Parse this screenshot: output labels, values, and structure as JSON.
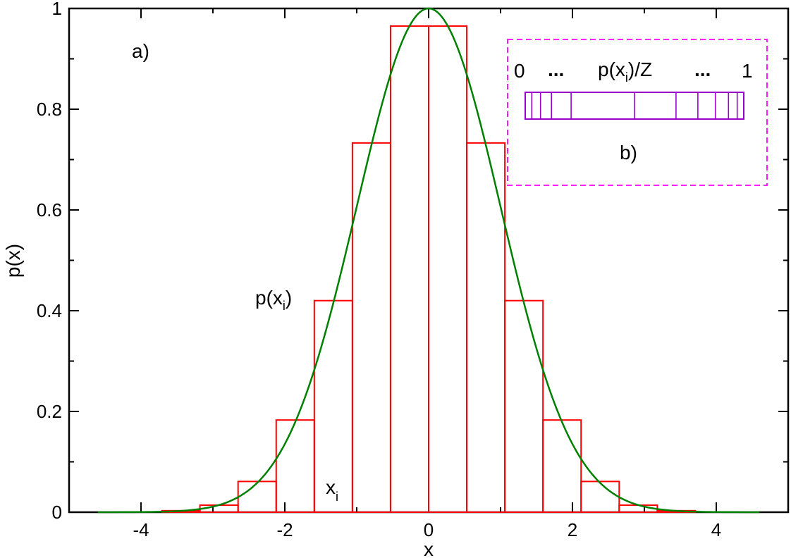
{
  "chart_data": {
    "type": "line",
    "xlabel": "x",
    "ylabel": "p(x)",
    "xlim": [
      -5,
      5
    ],
    "ylim": [
      0,
      1
    ],
    "x_ticks": [
      -4,
      -2,
      0,
      2,
      4
    ],
    "x_tick_labels": [
      "-4",
      "-2",
      "0",
      "2",
      "4"
    ],
    "y_ticks": [
      0,
      0.2,
      0.4,
      0.6,
      0.8,
      1
    ],
    "y_tick_labels": [
      "0",
      "0.2",
      "0.4",
      "0.6",
      "0.8",
      "1"
    ],
    "grid": false,
    "curve": {
      "function": "exp(-x^2/2)",
      "x_range": [
        -4.6,
        4.6
      ],
      "color": "#008000"
    },
    "histogram": {
      "color": "#ff0000",
      "bin_width": 0.53,
      "bins": [
        {
          "x_left": -3.71,
          "x_right": -3.18,
          "value": 0.003
        },
        {
          "x_left": -3.18,
          "x_right": -2.65,
          "value": 0.014
        },
        {
          "x_left": -2.65,
          "x_right": -2.12,
          "value": 0.061
        },
        {
          "x_left": -2.12,
          "x_right": -1.59,
          "value": 0.183
        },
        {
          "x_left": -1.59,
          "x_right": -1.06,
          "value": 0.42
        },
        {
          "x_left": -1.06,
          "x_right": -0.53,
          "value": 0.733
        },
        {
          "x_left": -0.53,
          "x_right": 0.0,
          "value": 0.965
        },
        {
          "x_left": 0.0,
          "x_right": 0.53,
          "value": 0.965
        },
        {
          "x_left": 0.53,
          "x_right": 1.06,
          "value": 0.733
        },
        {
          "x_left": 1.06,
          "x_right": 1.59,
          "value": 0.42
        },
        {
          "x_left": 1.59,
          "x_right": 2.12,
          "value": 0.183
        },
        {
          "x_left": 2.12,
          "x_right": 2.65,
          "value": 0.061
        },
        {
          "x_left": 2.65,
          "x_right": 3.18,
          "value": 0.014
        },
        {
          "x_left": 3.18,
          "x_right": 3.71,
          "value": 0.003
        }
      ]
    },
    "annotations": {
      "panel_a": "a)",
      "p_label_base": "p(x",
      "p_label_sub": "i",
      "p_label_end": ")",
      "x_label_base": "x",
      "x_label_sub": "i"
    },
    "inset": {
      "panel_label": "b)",
      "left_label": "0",
      "right_label": "1",
      "dots_left": "...",
      "dots_right": "...",
      "bar_label_base": "p(x",
      "bar_label_sub": "i",
      "bar_label_end": ")/Z",
      "bar_dividers": [
        0.03,
        0.07,
        0.12,
        0.21,
        0.5,
        0.69,
        0.79,
        0.87,
        0.93,
        0.97
      ],
      "border_color": "#ff00ff",
      "bar_color": "#9900cc"
    }
  }
}
